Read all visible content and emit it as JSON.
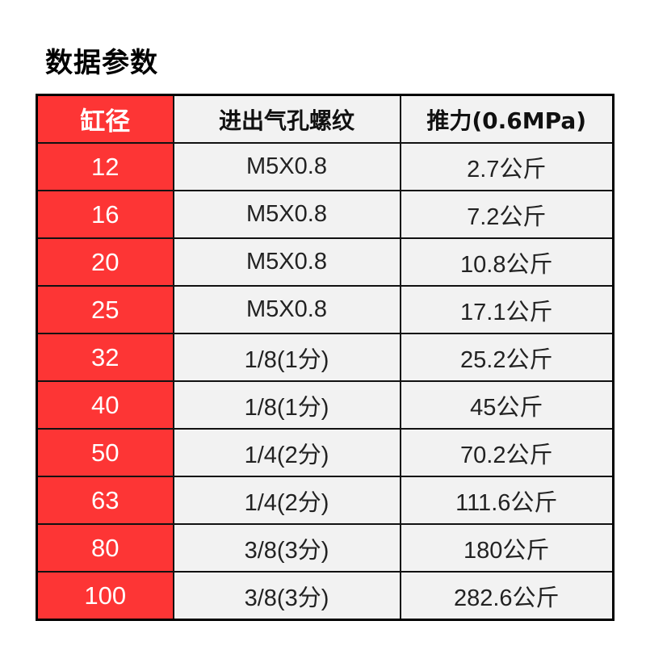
{
  "title": "数据参数",
  "table": {
    "headers": [
      "缸径",
      "进出气孔螺纹",
      "推力(0.6MPa)"
    ],
    "rows": [
      {
        "bore": "12",
        "thread": "M5X0.8",
        "thrust": "2.7公斤"
      },
      {
        "bore": "16",
        "thread": "M5X0.8",
        "thrust": "7.2公斤"
      },
      {
        "bore": "20",
        "thread": "M5X0.8",
        "thrust": "10.8公斤"
      },
      {
        "bore": "25",
        "thread": "M5X0.8",
        "thrust": "17.1公斤"
      },
      {
        "bore": "32",
        "thread": "1/8(1分)",
        "thrust": "25.2公斤"
      },
      {
        "bore": "40",
        "thread": "1/8(1分)",
        "thrust": "45公斤"
      },
      {
        "bore": "50",
        "thread": "1/4(2分)",
        "thrust": "70.2公斤"
      },
      {
        "bore": "63",
        "thread": "1/4(2分)",
        "thrust": "111.6公斤"
      },
      {
        "bore": "80",
        "thread": "3/8(3分)",
        "thrust": "180公斤"
      },
      {
        "bore": "100",
        "thread": "3/8(3分)",
        "thrust": "282.6公斤"
      }
    ]
  },
  "colors": {
    "accent_red": "#fd3535",
    "cell_bg": "#f2f2f2",
    "border": "#111111"
  }
}
